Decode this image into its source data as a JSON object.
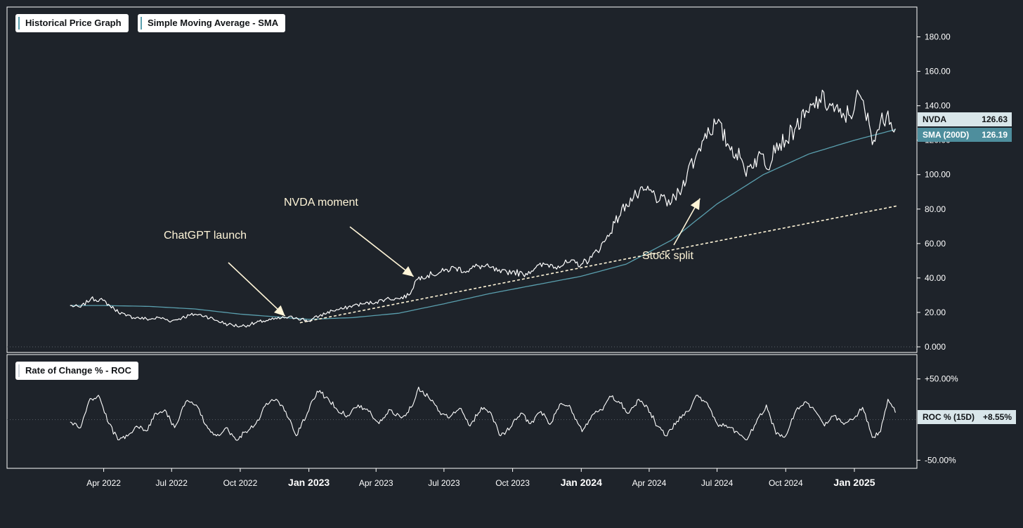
{
  "legend": {
    "price_tab": "Historical Price Graph",
    "sma_tab": "Simple Moving Average - SMA",
    "roc_tab": "Rate of Change % - ROC"
  },
  "price_labels": {
    "nvda_name": "NVDA",
    "nvda_value": "126.63",
    "sma_name": "SMA (200D)",
    "sma_value": "126.19",
    "roc_name": "ROC % (15D)",
    "roc_value": "+8.55%"
  },
  "annotations": [
    {
      "text": "ChatGPT launch",
      "date": "2022-12-01",
      "value": 17
    },
    {
      "text": "NVDA moment",
      "date": "2023-05-25",
      "value": 40
    },
    {
      "text": "Stock split",
      "date": "2024-06-10",
      "value": 87
    }
  ],
  "colors": {
    "background": "#1e232a",
    "price_line": "#ffffff",
    "sma_line": "#5a9fae",
    "trend_line": "#fff5d8",
    "arrow": "#fff5d8",
    "nvda_tag": "#d9e6ea",
    "sma_tag": "#4e8e9d"
  },
  "chart_data": [
    {
      "type": "line",
      "title": "",
      "xlabel": "",
      "ylabel": "",
      "ylim": [
        0,
        190
      ],
      "yticks": [
        "0.000",
        "20.00",
        "40.00",
        "60.00",
        "80.00",
        "100.00",
        "120.00",
        "140.00",
        "160.00",
        "180.00"
      ],
      "xticks": [
        {
          "label": "Apr 2022",
          "date": "2022-04-01",
          "bold": false
        },
        {
          "label": "Jul 2022",
          "date": "2022-07-01",
          "bold": false
        },
        {
          "label": "Oct 2022",
          "date": "2022-10-01",
          "bold": false
        },
        {
          "label": "Jan 2023",
          "date": "2023-01-01",
          "bold": true
        },
        {
          "label": "Apr 2023",
          "date": "2023-04-01",
          "bold": false
        },
        {
          "label": "Jul 2023",
          "date": "2023-07-01",
          "bold": false
        },
        {
          "label": "Oct 2023",
          "date": "2023-10-01",
          "bold": false
        },
        {
          "label": "Jan 2024",
          "date": "2024-01-01",
          "bold": true
        },
        {
          "label": "Apr 2024",
          "date": "2024-04-01",
          "bold": false
        },
        {
          "label": "Jul 2024",
          "date": "2024-07-01",
          "bold": false
        },
        {
          "label": "Oct 2024",
          "date": "2024-10-01",
          "bold": false
        },
        {
          "label": "Jan 2025",
          "date": "2025-01-01",
          "bold": true
        }
      ],
      "series": [
        {
          "name": "NVDA",
          "x": [
            "2022-02-15",
            "2022-03-01",
            "2022-03-15",
            "2022-03-31",
            "2022-04-15",
            "2022-05-01",
            "2022-05-15",
            "2022-06-01",
            "2022-06-15",
            "2022-07-01",
            "2022-07-15",
            "2022-08-01",
            "2022-08-15",
            "2022-09-01",
            "2022-09-15",
            "2022-10-01",
            "2022-10-15",
            "2022-11-01",
            "2022-11-15",
            "2022-12-01",
            "2022-12-15",
            "2023-01-01",
            "2023-01-15",
            "2023-02-01",
            "2023-02-15",
            "2023-03-01",
            "2023-03-15",
            "2023-04-01",
            "2023-04-15",
            "2023-05-01",
            "2023-05-15",
            "2023-05-25",
            "2023-06-01",
            "2023-06-15",
            "2023-07-01",
            "2023-07-15",
            "2023-08-01",
            "2023-08-15",
            "2023-09-01",
            "2023-09-15",
            "2023-10-01",
            "2023-10-15",
            "2023-11-01",
            "2023-11-15",
            "2023-12-01",
            "2023-12-15",
            "2024-01-01",
            "2024-01-15",
            "2024-02-01",
            "2024-02-15",
            "2024-03-01",
            "2024-03-15",
            "2024-04-01",
            "2024-04-15",
            "2024-05-01",
            "2024-05-15",
            "2024-05-24",
            "2024-06-01",
            "2024-06-15",
            "2024-07-01",
            "2024-07-15",
            "2024-08-01",
            "2024-08-07",
            "2024-08-15",
            "2024-09-01",
            "2024-09-07",
            "2024-09-15",
            "2024-10-01",
            "2024-10-15",
            "2024-11-01",
            "2024-11-15",
            "2024-12-01",
            "2024-12-15",
            "2025-01-01",
            "2025-01-07",
            "2025-01-15",
            "2025-01-27",
            "2025-02-01",
            "2025-02-15",
            "2025-02-25"
          ],
          "y": [
            24,
            23,
            28,
            27,
            22,
            18,
            17,
            16,
            17,
            15,
            17,
            19,
            18,
            15,
            13,
            12,
            13,
            15,
            16,
            17,
            17,
            15,
            18,
            21,
            22,
            24,
            25,
            26,
            28,
            28,
            30,
            39,
            41,
            42,
            44,
            46,
            44,
            47,
            46,
            43,
            44,
            42,
            46,
            48,
            47,
            49,
            48,
            52,
            61,
            72,
            83,
            88,
            91,
            85,
            84,
            92,
            105,
            108,
            124,
            130,
            118,
            110,
            102,
            106,
            112,
            103,
            117,
            120,
            128,
            136,
            144,
            140,
            133,
            138,
            147,
            137,
            120,
            126,
            137,
            126.63
          ]
        },
        {
          "name": "SMA (200D)",
          "x": [
            "2022-02-15",
            "2022-04-01",
            "2022-06-01",
            "2022-08-01",
            "2022-10-01",
            "2022-12-01",
            "2023-01-01",
            "2023-03-01",
            "2023-05-01",
            "2023-07-01",
            "2023-09-01",
            "2023-11-01",
            "2024-01-01",
            "2024-03-01",
            "2024-05-01",
            "2024-07-01",
            "2024-09-01",
            "2024-11-01",
            "2025-01-01",
            "2025-02-25"
          ],
          "y": [
            24,
            24,
            23.5,
            22,
            19,
            17,
            16,
            17,
            19.5,
            25,
            31,
            36,
            41,
            48,
            62,
            83,
            100,
            112,
            120,
            126.19
          ]
        },
        {
          "name": "Trend",
          "x": [
            "2022-12-20",
            "2025-03-01"
          ],
          "y": [
            14,
            82
          ]
        }
      ]
    },
    {
      "type": "line",
      "title": "",
      "ylim": [
        -60,
        80
      ],
      "yticks": [
        "-50.00%",
        "+50.00%"
      ],
      "hidden_tick": "0.00%",
      "series": [
        {
          "name": "ROC % (15D)",
          "x": [
            "2022-02-15",
            "2022-03-01",
            "2022-03-12",
            "2022-03-25",
            "2022-04-08",
            "2022-04-20",
            "2022-05-05",
            "2022-05-15",
            "2022-05-28",
            "2022-06-10",
            "2022-06-22",
            "2022-07-05",
            "2022-07-20",
            "2022-08-03",
            "2022-08-15",
            "2022-08-30",
            "2022-09-12",
            "2022-09-25",
            "2022-10-08",
            "2022-10-22",
            "2022-11-05",
            "2022-11-18",
            "2022-12-01",
            "2022-12-15",
            "2022-12-30",
            "2023-01-12",
            "2023-01-25",
            "2023-02-08",
            "2023-02-22",
            "2023-03-08",
            "2023-03-22",
            "2023-04-05",
            "2023-04-20",
            "2023-05-05",
            "2023-05-18",
            "2023-05-28",
            "2023-06-10",
            "2023-06-25",
            "2023-07-08",
            "2023-07-22",
            "2023-08-05",
            "2023-08-20",
            "2023-09-02",
            "2023-09-15",
            "2023-09-28",
            "2023-10-12",
            "2023-10-25",
            "2023-11-08",
            "2023-11-20",
            "2023-12-05",
            "2023-12-18",
            "2024-01-02",
            "2024-01-15",
            "2024-01-28",
            "2024-02-10",
            "2024-02-22",
            "2024-03-05",
            "2024-03-18",
            "2024-03-30",
            "2024-04-12",
            "2024-04-25",
            "2024-05-08",
            "2024-05-22",
            "2024-06-05",
            "2024-06-18",
            "2024-07-01",
            "2024-07-15",
            "2024-07-28",
            "2024-08-10",
            "2024-08-22",
            "2024-09-05",
            "2024-09-18",
            "2024-10-01",
            "2024-10-15",
            "2024-10-28",
            "2024-11-10",
            "2024-11-22",
            "2024-12-05",
            "2024-12-18",
            "2025-01-01",
            "2025-01-12",
            "2025-01-25",
            "2025-02-05",
            "2025-02-15",
            "2025-02-25"
          ],
          "y": [
            -3,
            -10,
            22,
            30,
            -5,
            -25,
            -18,
            -8,
            -14,
            8,
            12,
            -10,
            22,
            18,
            -6,
            -20,
            -10,
            -25,
            -15,
            -5,
            20,
            25,
            10,
            -20,
            8,
            35,
            28,
            12,
            5,
            18,
            10,
            -5,
            12,
            2,
            15,
            40,
            28,
            10,
            2,
            14,
            -8,
            15,
            8,
            -20,
            -10,
            8,
            -5,
            10,
            -6,
            20,
            14,
            -15,
            5,
            12,
            28,
            20,
            8,
            25,
            15,
            -8,
            -20,
            -2,
            10,
            30,
            20,
            -5,
            -10,
            -15,
            -25,
            -5,
            18,
            -18,
            -20,
            12,
            22,
            10,
            -8,
            5,
            -6,
            2,
            15,
            -22,
            -15,
            25,
            8.55
          ]
        }
      ]
    }
  ]
}
